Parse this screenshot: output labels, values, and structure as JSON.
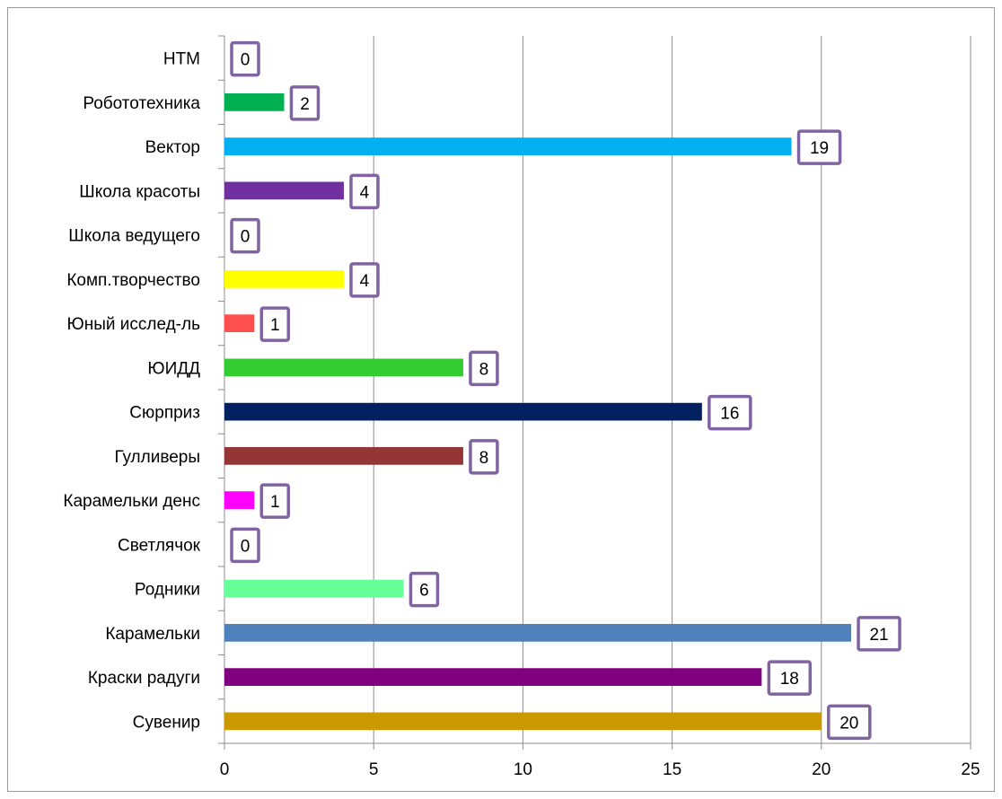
{
  "chart_data": {
    "type": "bar",
    "orientation": "horizontal",
    "categories": [
      "НТМ",
      "Робототехника",
      "Вектор",
      "Школа красоты",
      "Школа ведущего",
      "Комп.творчество",
      "Юный исслед-ль",
      "ЮИДД",
      "Сюрприз",
      "Гулливеры",
      "Карамельки денс",
      "Светлячок",
      "Родники",
      "Карамельки",
      "Краски радуги",
      "Сувенир"
    ],
    "values": [
      0,
      2,
      19,
      4,
      0,
      4,
      1,
      8,
      16,
      8,
      1,
      0,
      6,
      21,
      18,
      20
    ],
    "colors": [
      "#4f81bd",
      "#00b050",
      "#00b0f0",
      "#7030a0",
      "#4f81bd",
      "#ffff00",
      "#ff5050",
      "#33cc33",
      "#002060",
      "#943634",
      "#ff00ff",
      "#4f81bd",
      "#66ff99",
      "#4f81bd",
      "#800080",
      "#cc9900"
    ],
    "data_labels": [
      "0",
      "2",
      "19",
      "4",
      "0",
      "4",
      "1",
      "8",
      "16",
      "8",
      "1",
      "0",
      "6",
      "21",
      "18",
      "20"
    ],
    "data_label_border_color": "#8064a2",
    "x_ticks": [
      "0",
      "5",
      "10",
      "15",
      "20",
      "25"
    ],
    "xlim": [
      0,
      25
    ],
    "grid": "vertical major gridlines",
    "legend": "none",
    "title": "",
    "xlabel": "",
    "ylabel": ""
  }
}
